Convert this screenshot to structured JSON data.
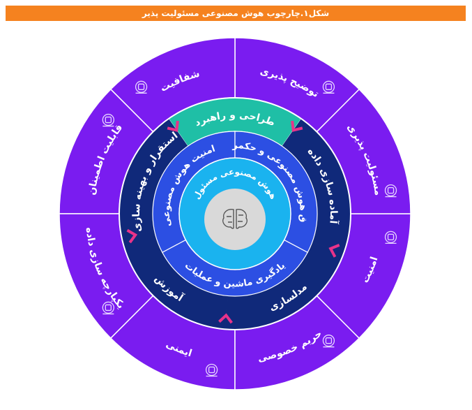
{
  "header": {
    "title": "شکل۱.چارچوب هوش مصنوعی مسئولیت پذیر"
  },
  "center": {
    "label": "هوش مصنوعی مسئول",
    "icon": "brain-icon"
  },
  "inner_ring": [
    {
      "label": "امنیت هوش مصنوعی"
    },
    {
      "label": "اخلاق هوش مصنوعی و حکمرانی"
    },
    {
      "label": "یادگیری ماشین و عملیات"
    }
  ],
  "middle_ring": [
    {
      "label": "طراحی و راهبرد"
    },
    {
      "label": "آماده سازی داده"
    },
    {
      "label": "مدلسازی"
    },
    {
      "label": "آموزش"
    },
    {
      "label": "استقرار و بهینه سازی"
    }
  ],
  "outer_ring": [
    {
      "label": "توضیح پذیری",
      "icon": "document-stamp-icon"
    },
    {
      "label": "شفافیت",
      "icon": "handshake-icon"
    },
    {
      "label": "قابلیت اطمینان",
      "icon": "badge-icon"
    },
    {
      "label": "یکپارچه سازی داده",
      "icon": "data-integration-icon"
    },
    {
      "label": "ایمنی",
      "icon": "network-icon"
    },
    {
      "label": "حریم خصوصی",
      "icon": "privacy-gear-icon"
    },
    {
      "label": "امنیت",
      "icon": "shield-check-icon"
    },
    {
      "label": "مسئولیت پذیری",
      "icon": "checklist-icon"
    }
  ],
  "colors": {
    "header": "#f5821f",
    "outer": "#7a1cf0",
    "middle": "#10297a",
    "middle_accent": "#1fbfa6",
    "inner": "#2c4fe3",
    "core": "#1ab3ef",
    "center": "#d9d9d9",
    "chevron": "#e8338a"
  }
}
